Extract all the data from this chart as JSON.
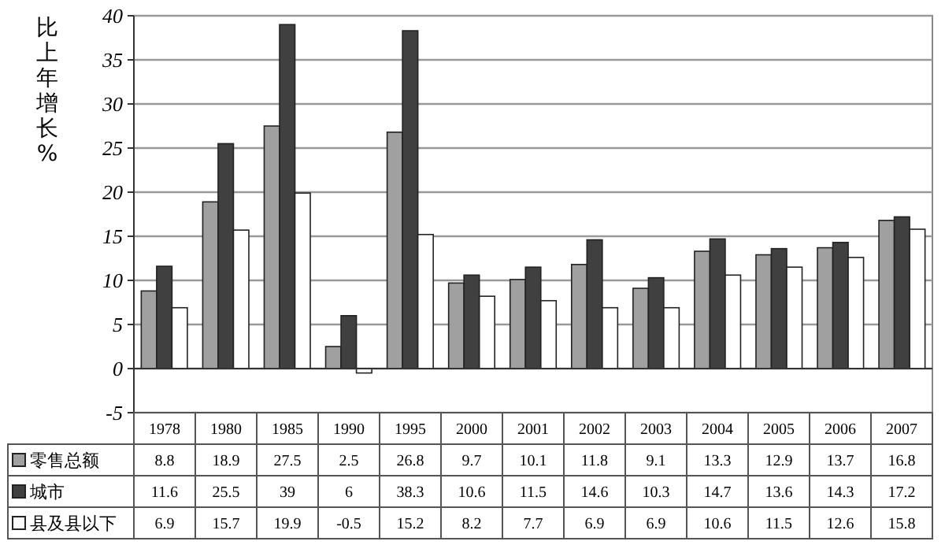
{
  "chart_data": {
    "type": "bar",
    "ylabel": "比上年增长%",
    "categories": [
      "1978",
      "1980",
      "1985",
      "1990",
      "1995",
      "2000",
      "2001",
      "2002",
      "2003",
      "2004",
      "2005",
      "2006",
      "2007"
    ],
    "series": [
      {
        "name": "零售总额",
        "color": "#a0a0a0",
        "values": [
          8.8,
          18.9,
          27.5,
          2.5,
          26.8,
          9.7,
          10.1,
          11.8,
          9.1,
          13.3,
          12.9,
          13.7,
          16.8
        ]
      },
      {
        "name": "城市",
        "color": "#404040",
        "values": [
          11.6,
          25.5,
          39,
          6,
          38.3,
          10.6,
          11.5,
          14.6,
          10.3,
          14.7,
          13.6,
          14.3,
          17.2
        ]
      },
      {
        "name": "县及县以下",
        "color": "#ffffff",
        "values": [
          6.9,
          15.7,
          19.9,
          -0.5,
          15.2,
          8.2,
          7.7,
          6.9,
          6.9,
          10.6,
          11.5,
          12.6,
          15.8
        ]
      }
    ],
    "ylim": [
      -5,
      40
    ],
    "yticks": [
      -5,
      0,
      5,
      10,
      15,
      20,
      25,
      30,
      35,
      40
    ],
    "grid": "y",
    "legend": "bottom",
    "data_labels": true
  }
}
